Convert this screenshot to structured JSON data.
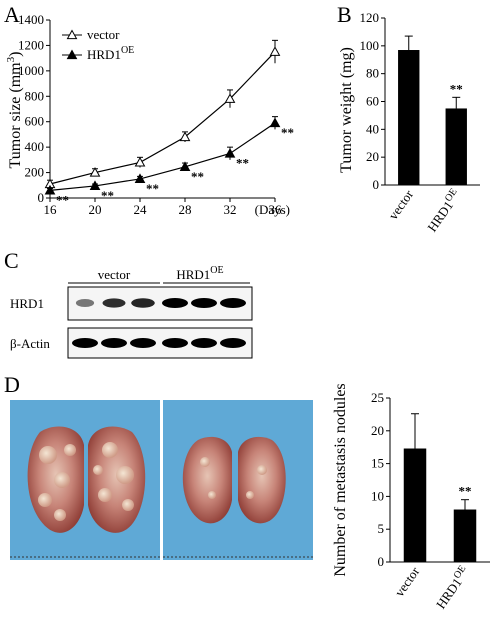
{
  "panels": {
    "A": "A",
    "B": "B",
    "C": "C",
    "D": "D"
  },
  "chart_data": [
    {
      "panel": "A",
      "type": "line",
      "xlabel": "(Days)",
      "ylabel_main": "Tumor size (mm",
      "ylabel_sup": "3",
      "ylabel_close": ")",
      "x": [
        16,
        20,
        24,
        28,
        32,
        36
      ],
      "xticks": [
        16,
        20,
        24,
        28,
        32,
        36
      ],
      "yticks": [
        0,
        200,
        400,
        600,
        800,
        1000,
        1200,
        1400
      ],
      "xlim": [
        16,
        36
      ],
      "ylim": [
        0,
        1400
      ],
      "series": [
        {
          "name": "vector",
          "name_sup": "",
          "marker": "open-triangle",
          "values": [
            110,
            200,
            280,
            480,
            780,
            1150
          ],
          "errors": [
            30,
            30,
            40,
            40,
            70,
            90
          ]
        },
        {
          "name": "HRD1",
          "name_sup": "OE",
          "marker": "filled-triangle",
          "values": [
            60,
            95,
            150,
            245,
            350,
            590
          ],
          "errors": [
            15,
            15,
            20,
            30,
            50,
            50
          ]
        }
      ],
      "significance": [
        "**",
        "**",
        "**",
        "**",
        "**",
        "**"
      ]
    },
    {
      "panel": "B",
      "type": "bar",
      "ylabel": "Tumor weight (mg)",
      "yticks": [
        0,
        20,
        40,
        60,
        80,
        100,
        120
      ],
      "ylim": [
        0,
        120
      ],
      "categories": [
        {
          "main": "vector",
          "sup": ""
        },
        {
          "main": "HRD1",
          "sup": "OE"
        }
      ],
      "values": [
        97,
        55
      ],
      "errors": [
        10,
        8
      ],
      "significance": [
        "",
        "**"
      ]
    },
    {
      "panel": "D",
      "type": "bar",
      "ylabel": "Number of metastasis nodules",
      "yticks": [
        0,
        5,
        10,
        15,
        20,
        25
      ],
      "ylim": [
        0,
        25
      ],
      "categories": [
        {
          "main": "vector",
          "sup": ""
        },
        {
          "main": "HRD1",
          "sup": "OE"
        }
      ],
      "values": [
        17.3,
        8
      ],
      "errors": [
        5.3,
        1.5
      ],
      "significance": [
        "",
        "**"
      ]
    }
  ],
  "blot": {
    "group_labels": [
      {
        "main": "vector",
        "sup": ""
      },
      {
        "main": "HRD1",
        "sup": "OE"
      }
    ],
    "rows": [
      {
        "label": "HRD1",
        "intensities": [
          0.35,
          0.75,
          0.8,
          1,
          1,
          1
        ]
      },
      {
        "label": "β-Actin",
        "intensities": [
          1,
          1,
          1,
          1,
          1,
          1
        ]
      }
    ]
  },
  "colors": {
    "background_photo": "#5fa9d6",
    "lung_tissue": "#c78478",
    "bar_fill": "#000000"
  }
}
